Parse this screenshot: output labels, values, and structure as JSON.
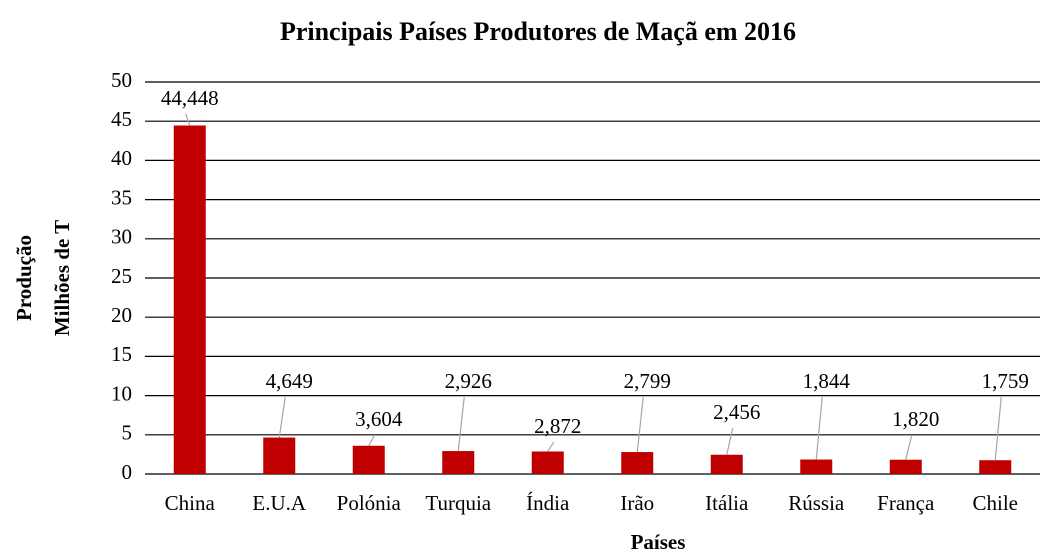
{
  "chart_data": {
    "type": "bar",
    "title": "Principais Países Produtores de Maçã em 2016",
    "y_label": [
      "Produção",
      "Milhões de T"
    ],
    "x_label": "Países",
    "categories": [
      "China",
      "E.U.A",
      "Polónia",
      "Turquia",
      "Índia",
      "Irão",
      "Itália",
      "Rússia",
      "França",
      "Chile"
    ],
    "values": [
      44.448,
      4.649,
      3.604,
      2.926,
      2.872,
      2.799,
      2.456,
      1.844,
      1.82,
      1.759
    ],
    "value_labels": [
      "44,448",
      "4,649",
      "3,604",
      "2,926",
      "2,872",
      "2,799",
      "2,456",
      "1,844",
      "1,820",
      "1,759"
    ],
    "color": "#c00000",
    "ylim": [
      0,
      50
    ],
    "yticks": [
      0,
      5,
      10,
      15,
      20,
      25,
      30,
      35,
      40,
      45,
      50
    ],
    "grid": true
  }
}
